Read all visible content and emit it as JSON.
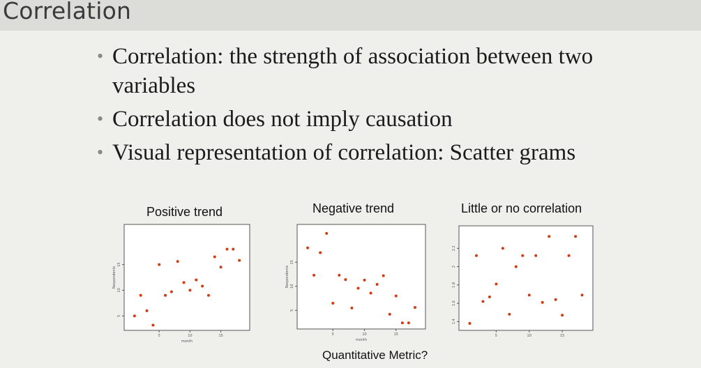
{
  "slide": {
    "title": "Correlation",
    "bullets": [
      "Correlation: the strength of association between two variables",
      "Correlation does not imply causation",
      "Visual representation  of correlation: Scatter grams"
    ],
    "caption": "Quantitative Metric?"
  },
  "colors": {
    "point": "#d23a12",
    "title_bar": "#dcdcd8"
  },
  "chart_data": [
    {
      "type": "scatter",
      "title": "Positive trend",
      "xlabel": "month",
      "ylabel": "Respondents",
      "xlim": [
        0,
        19
      ],
      "ylim": [
        3,
        22
      ],
      "xticks": [
        5,
        10,
        15
      ],
      "yticks": [
        5,
        10,
        15
      ],
      "x": [
        1,
        2,
        3,
        4,
        5,
        6,
        7,
        8,
        9,
        10,
        11,
        12,
        13,
        14,
        15,
        16,
        17,
        18
      ],
      "y": [
        5,
        9,
        6,
        3.2,
        15,
        9,
        9.7,
        15.6,
        11.5,
        10,
        12,
        10.8,
        9,
        16.5,
        14.5,
        18,
        18,
        15.8
      ]
    },
    {
      "type": "scatter",
      "title": "Negative trend",
      "xlabel": "month",
      "ylabel": "Respondents",
      "xlim": [
        0,
        19
      ],
      "ylim": [
        2,
        22
      ],
      "xticks": [
        5,
        10,
        15
      ],
      "yticks": [
        5,
        10,
        15
      ],
      "x": [
        1,
        2,
        3,
        4,
        5,
        6,
        7,
        8,
        9,
        10,
        11,
        12,
        13,
        14,
        15,
        16,
        17,
        18
      ],
      "y": [
        18,
        12.3,
        17,
        21,
        6.5,
        12.3,
        11.4,
        5.5,
        9.6,
        11.3,
        8.6,
        10.4,
        12.2,
        4.2,
        8,
        2.4,
        2.4,
        5.6
      ]
    },
    {
      "type": "scatter",
      "title": "Little or no correlation",
      "xlabel": "",
      "ylabel": "",
      "xlim": [
        0,
        19
      ],
      "ylim": [
        1.35,
        2.4
      ],
      "xticks": [
        5,
        10,
        15
      ],
      "yticks": [
        1.4,
        1.6,
        1.8,
        2.0,
        2.2
      ],
      "x": [
        1,
        2,
        3,
        4,
        5,
        6,
        7,
        8,
        9,
        10,
        11,
        12,
        13,
        14,
        15,
        16,
        17,
        18
      ],
      "y": [
        1.38,
        2.12,
        1.62,
        1.67,
        1.81,
        2.2,
        1.48,
        2.0,
        2.12,
        1.69,
        2.12,
        1.61,
        2.33,
        1.64,
        1.47,
        2.12,
        2.33,
        1.69
      ]
    }
  ]
}
